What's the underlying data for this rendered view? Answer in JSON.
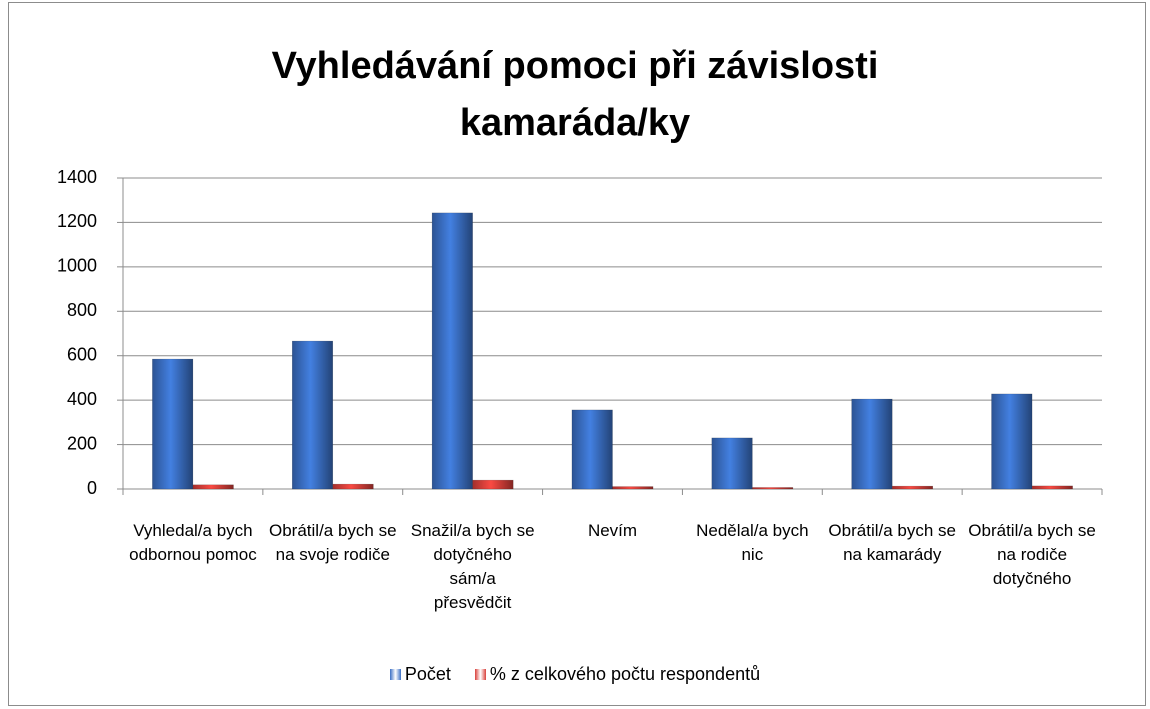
{
  "chart_data": {
    "type": "bar",
    "title": "Vyhledávání pomoci při závislosti kamaráda/ky",
    "categories": [
      "Vyhledal/a bych odbornou pomoc",
      "Obrátil/a bych se na svoje rodiče",
      "Snažil/a bych se dotyčného sám/a přesvědčit",
      "Nevím",
      "Nedělal/a bych nic",
      "Obrátil/a bych se na kamarády",
      "Obrátil/a bych se na rodiče dotyčného"
    ],
    "series": [
      {
        "name": "Počet",
        "color": "#3a6fc4",
        "values": [
          585,
          666,
          1243,
          356,
          230,
          405,
          428
        ]
      },
      {
        "name": "% z celkového počtu respondentů",
        "color": "#d9403a",
        "values": [
          19,
          22,
          40,
          11,
          7,
          13,
          14
        ]
      }
    ],
    "ylim": [
      0,
      1400
    ],
    "yticks": [
      0,
      200,
      400,
      600,
      800,
      1000,
      1200,
      1400
    ],
    "grid": true,
    "legend": "bottom"
  }
}
